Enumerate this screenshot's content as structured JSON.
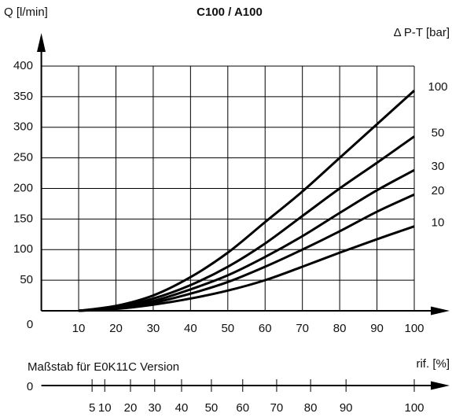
{
  "chart_data": {
    "type": "line",
    "title": "C100 / A100",
    "y_label": "Q [l/min]",
    "legend_title": "Δ P-T [bar]",
    "x_label": "rif. [%]",
    "x": [
      10,
      20,
      30,
      40,
      50,
      60,
      70,
      80,
      90,
      100
    ],
    "xlim": [
      0,
      100
    ],
    "xticks": [
      10,
      20,
      30,
      40,
      50,
      60,
      70,
      80,
      90,
      100
    ],
    "ylim": [
      0,
      400
    ],
    "yticks": [
      0,
      50,
      100,
      150,
      200,
      250,
      300,
      350,
      400
    ],
    "grid": true,
    "series": [
      {
        "name": "100",
        "color": "#000000",
        "values": [
          0,
          8,
          25,
          55,
          95,
          145,
          195,
          250,
          305,
          360
        ]
      },
      {
        "name": "50",
        "color": "#000000",
        "values": [
          0,
          6,
          20,
          42,
          72,
          110,
          155,
          200,
          242,
          285
        ]
      },
      {
        "name": "30",
        "color": "#000000",
        "values": [
          0,
          5,
          16,
          35,
          58,
          88,
          122,
          160,
          197,
          230
        ]
      },
      {
        "name": "20",
        "color": "#000000",
        "values": [
          0,
          4,
          13,
          28,
          47,
          72,
          100,
          130,
          162,
          190
        ]
      },
      {
        "name": "10",
        "color": "#000000",
        "values": [
          0,
          3,
          10,
          20,
          33,
          50,
          72,
          95,
          117,
          138
        ]
      }
    ],
    "scale": {
      "label": "Maßstab für E0K11C Version",
      "origin": 0,
      "ticks": [
        {
          "value": 5,
          "at": 13.6
        },
        {
          "value": 10,
          "at": 17
        },
        {
          "value": 20,
          "at": 23.9
        },
        {
          "value": 30,
          "at": 30.4
        },
        {
          "value": 40,
          "at": 37.6
        },
        {
          "value": 50,
          "at": 45.6
        },
        {
          "value": 60,
          "at": 54
        },
        {
          "value": 70,
          "at": 63.1
        },
        {
          "value": 80,
          "at": 72.2
        },
        {
          "value": 90,
          "at": 81.7
        },
        {
          "value": 100,
          "at": 100
        }
      ]
    }
  }
}
